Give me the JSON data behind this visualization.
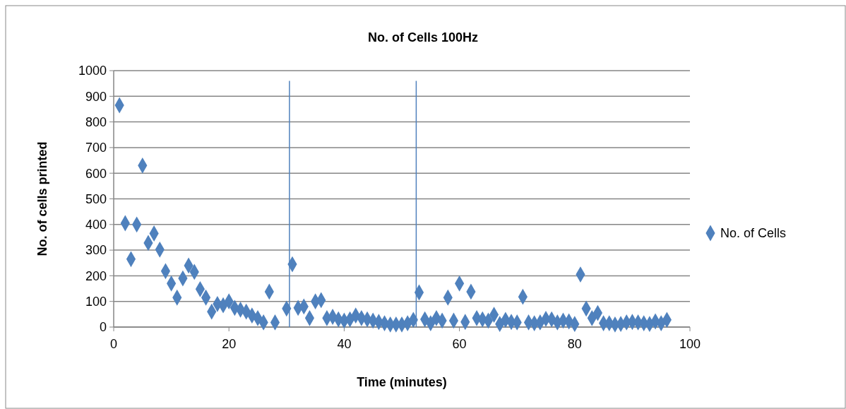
{
  "chart_data": {
    "type": "scatter",
    "title": "No. of Cells 100Hz",
    "xlabel": "Time (minutes)",
    "ylabel": "No. of cells printed",
    "xlim": [
      0,
      100
    ],
    "xticks": [
      0,
      20,
      40,
      60,
      80,
      100
    ],
    "ylim": [
      0,
      1000
    ],
    "yticks": [
      0,
      100,
      200,
      300,
      400,
      500,
      600,
      700,
      800,
      900,
      1000
    ],
    "grid": "y",
    "legend": "right",
    "marker": "diamond",
    "ref_lines": [
      {
        "axis": "x",
        "value": 30.5,
        "color": "#4f81bd"
      },
      {
        "axis": "x",
        "value": 52.5,
        "color": "#4f81bd"
      }
    ],
    "series": [
      {
        "name": "No. of Cells",
        "color": "#4f81bd",
        "x": [
          1,
          2,
          3,
          4,
          5,
          6,
          7,
          8,
          9,
          10,
          11,
          12,
          13,
          14,
          15,
          16,
          17,
          18,
          19,
          20,
          21,
          22,
          23,
          24,
          25,
          26,
          27,
          28,
          30,
          31,
          32,
          33,
          34,
          35,
          36,
          37,
          38,
          39,
          40,
          41,
          42,
          43,
          44,
          45,
          46,
          47,
          48,
          49,
          50,
          51,
          52,
          53,
          54,
          55,
          56,
          57,
          58,
          59,
          60,
          61,
          62,
          63,
          64,
          65,
          66,
          67,
          68,
          69,
          70,
          71,
          72,
          73,
          74,
          75,
          76,
          77,
          78,
          79,
          80,
          81,
          82,
          83,
          84,
          85,
          86,
          87,
          88,
          89,
          90,
          91,
          92,
          93,
          94,
          95,
          96
        ],
        "values": [
          865,
          405,
          265,
          400,
          630,
          328,
          365,
          302,
          218,
          170,
          115,
          190,
          240,
          215,
          148,
          115,
          60,
          90,
          85,
          100,
          75,
          68,
          60,
          45,
          35,
          18,
          138,
          18,
          72,
          245,
          75,
          80,
          35,
          100,
          105,
          35,
          40,
          30,
          25,
          30,
          45,
          35,
          30,
          25,
          20,
          15,
          10,
          10,
          10,
          15,
          28,
          135,
          30,
          15,
          35,
          25,
          115,
          25,
          170,
          20,
          138,
          35,
          30,
          25,
          48,
          12,
          28,
          20,
          18,
          118,
          18,
          15,
          18,
          32,
          30,
          18,
          25,
          22,
          12,
          205,
          72,
          35,
          55,
          15,
          15,
          10,
          12,
          18,
          20,
          18,
          15,
          12,
          22,
          15,
          28
        ]
      }
    ]
  }
}
